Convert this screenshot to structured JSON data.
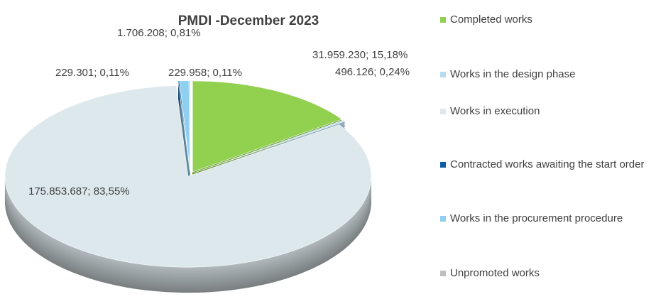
{
  "chart_data": {
    "type": "pie",
    "title": "PMDI -December 2023",
    "categories": [
      "Completed works",
      "Works in the design phase",
      "Works in execution",
      "Contracted works awaiting the start order",
      "Works in the procurement procedure",
      "Unpromoted works"
    ],
    "values": [
      31959230,
      496126,
      175853687,
      229301,
      1706208,
      229958
    ],
    "value_labels": [
      "31.959.230; 15,18%",
      "496.126; 0,24%",
      "175.853.687; 83,55%",
      "229.301; 0,11%",
      "1.706.208; 0,81%",
      "229.958; 0,11%"
    ],
    "colors": [
      "#92d050",
      "#b8dcef",
      "#dde8ec",
      "#0d5ea6",
      "#8fd0f0",
      "#bfbfbf"
    ],
    "legend": "right"
  }
}
